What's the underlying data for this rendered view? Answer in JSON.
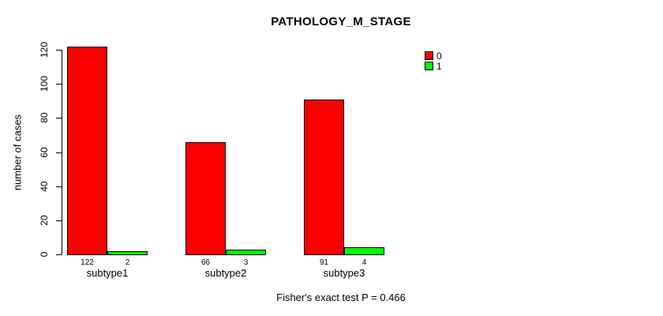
{
  "chart_data": {
    "type": "bar",
    "title": "PATHOLOGY_M_STAGE",
    "ylabel": "number of cases",
    "xlabel": "",
    "note": "Fisher's exact test P = 0.466",
    "categories": [
      "subtype1",
      "subtype2",
      "subtype3"
    ],
    "series": [
      {
        "name": "0",
        "color": "#ff0000",
        "values": [
          122,
          66,
          91
        ]
      },
      {
        "name": "1",
        "color": "#00ff00",
        "values": [
          2,
          3,
          4
        ]
      }
    ],
    "ylim": [
      0,
      120
    ],
    "yticks": [
      0,
      20,
      40,
      60,
      80,
      100,
      120
    ],
    "grid": false,
    "legend_position": "top-right",
    "bar_border_color": "#000000",
    "background": "#ffffff"
  }
}
